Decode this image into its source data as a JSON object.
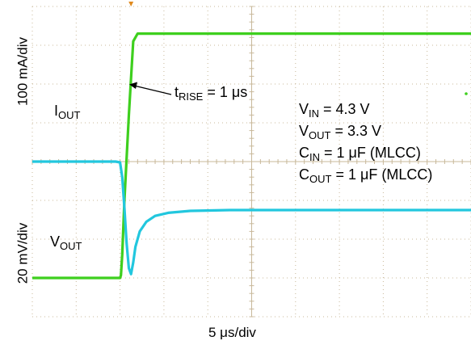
{
  "chart_data": {
    "type": "line",
    "title": "",
    "xlabel": "5 μs/div",
    "ylabel_top": "100 mA/div",
    "ylabel_bottom": "20 mV/div",
    "x_unit": "div",
    "xlim": [
      0,
      10
    ],
    "ylim": [
      0,
      8
    ],
    "grid": true,
    "grid_divisions": {
      "x": 10,
      "y": 8
    },
    "series": [
      {
        "name": "I_OUT",
        "label_main": "I",
        "label_sub": "OUT",
        "color": "#3ecf1e",
        "x": [
          0,
          2.0,
          2.02,
          2.05,
          2.1,
          2.2,
          2.3,
          2.4,
          2.5,
          10
        ],
        "y": [
          1.0,
          1.0,
          1.07,
          1.6,
          3.0,
          5.2,
          7.1,
          7.3,
          7.3,
          7.3
        ]
      },
      {
        "name": "V_OUT",
        "label_main": "V",
        "label_sub": "OUT",
        "color": "#22c7de",
        "x": [
          0,
          1.9,
          2.0,
          2.05,
          2.1,
          2.15,
          2.2,
          2.25,
          2.3,
          2.35,
          2.45,
          2.6,
          2.8,
          3.1,
          3.6,
          4.5,
          6,
          10
        ],
        "y": [
          4.0,
          4.0,
          3.98,
          3.6,
          2.8,
          1.9,
          1.25,
          1.1,
          1.4,
          1.8,
          2.2,
          2.45,
          2.6,
          2.68,
          2.73,
          2.75,
          2.75,
          2.75
        ]
      }
    ],
    "annotations": {
      "rise": {
        "main": "t",
        "sub": "RISE",
        "rest": " = 1 μs"
      },
      "conditions": [
        {
          "main": "V",
          "sub": "IN",
          "rest": " = 4.3 V"
        },
        {
          "main": "V",
          "sub": "OUT",
          "rest": " = 3.3 V"
        },
        {
          "main": "C",
          "sub": "IN",
          "rest": " = 1 μF (MLCC)"
        },
        {
          "main": "C",
          "sub": "OUT",
          "rest": " = 1 μF (MLCC)"
        }
      ]
    },
    "grid_color": "#c8b89a",
    "trigger_marker_color": "#e08a1e"
  }
}
